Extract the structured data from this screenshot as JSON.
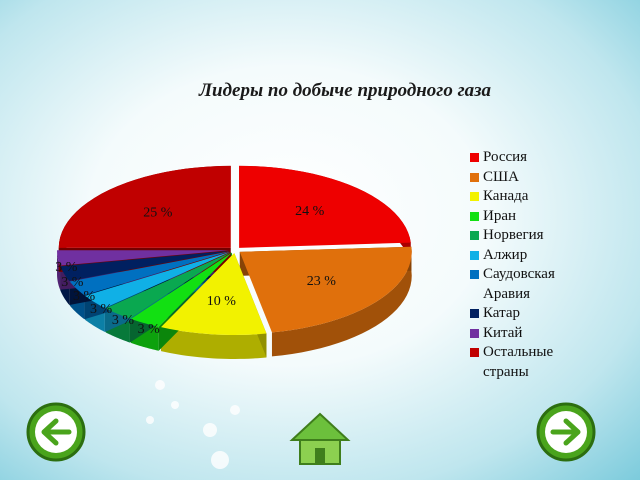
{
  "chart_data": {
    "type": "pie",
    "title": "Лидеры по добыче природного газа",
    "categories": [
      "Россия",
      "США",
      "Канада",
      "Иран",
      "Норвегия",
      "Алжир",
      "Саудовская Аравия",
      "Катар",
      "Китай",
      "Остальные страны"
    ],
    "values": [
      24,
      23,
      10,
      3,
      3,
      3,
      3,
      3,
      3,
      25
    ],
    "value_labels": [
      "24 %",
      "23 %",
      "10 %",
      "3 %",
      "3 %",
      "3 %",
      "3 %",
      "3 %",
      "3 %",
      "25 %"
    ],
    "colors": [
      "#ee0000",
      "#e0700c",
      "#f2f200",
      "#12e012",
      "#0aa850",
      "#10b0e6",
      "#0070c0",
      "#002060",
      "#7030a0",
      "#c00000"
    ],
    "legend": "right"
  }
}
